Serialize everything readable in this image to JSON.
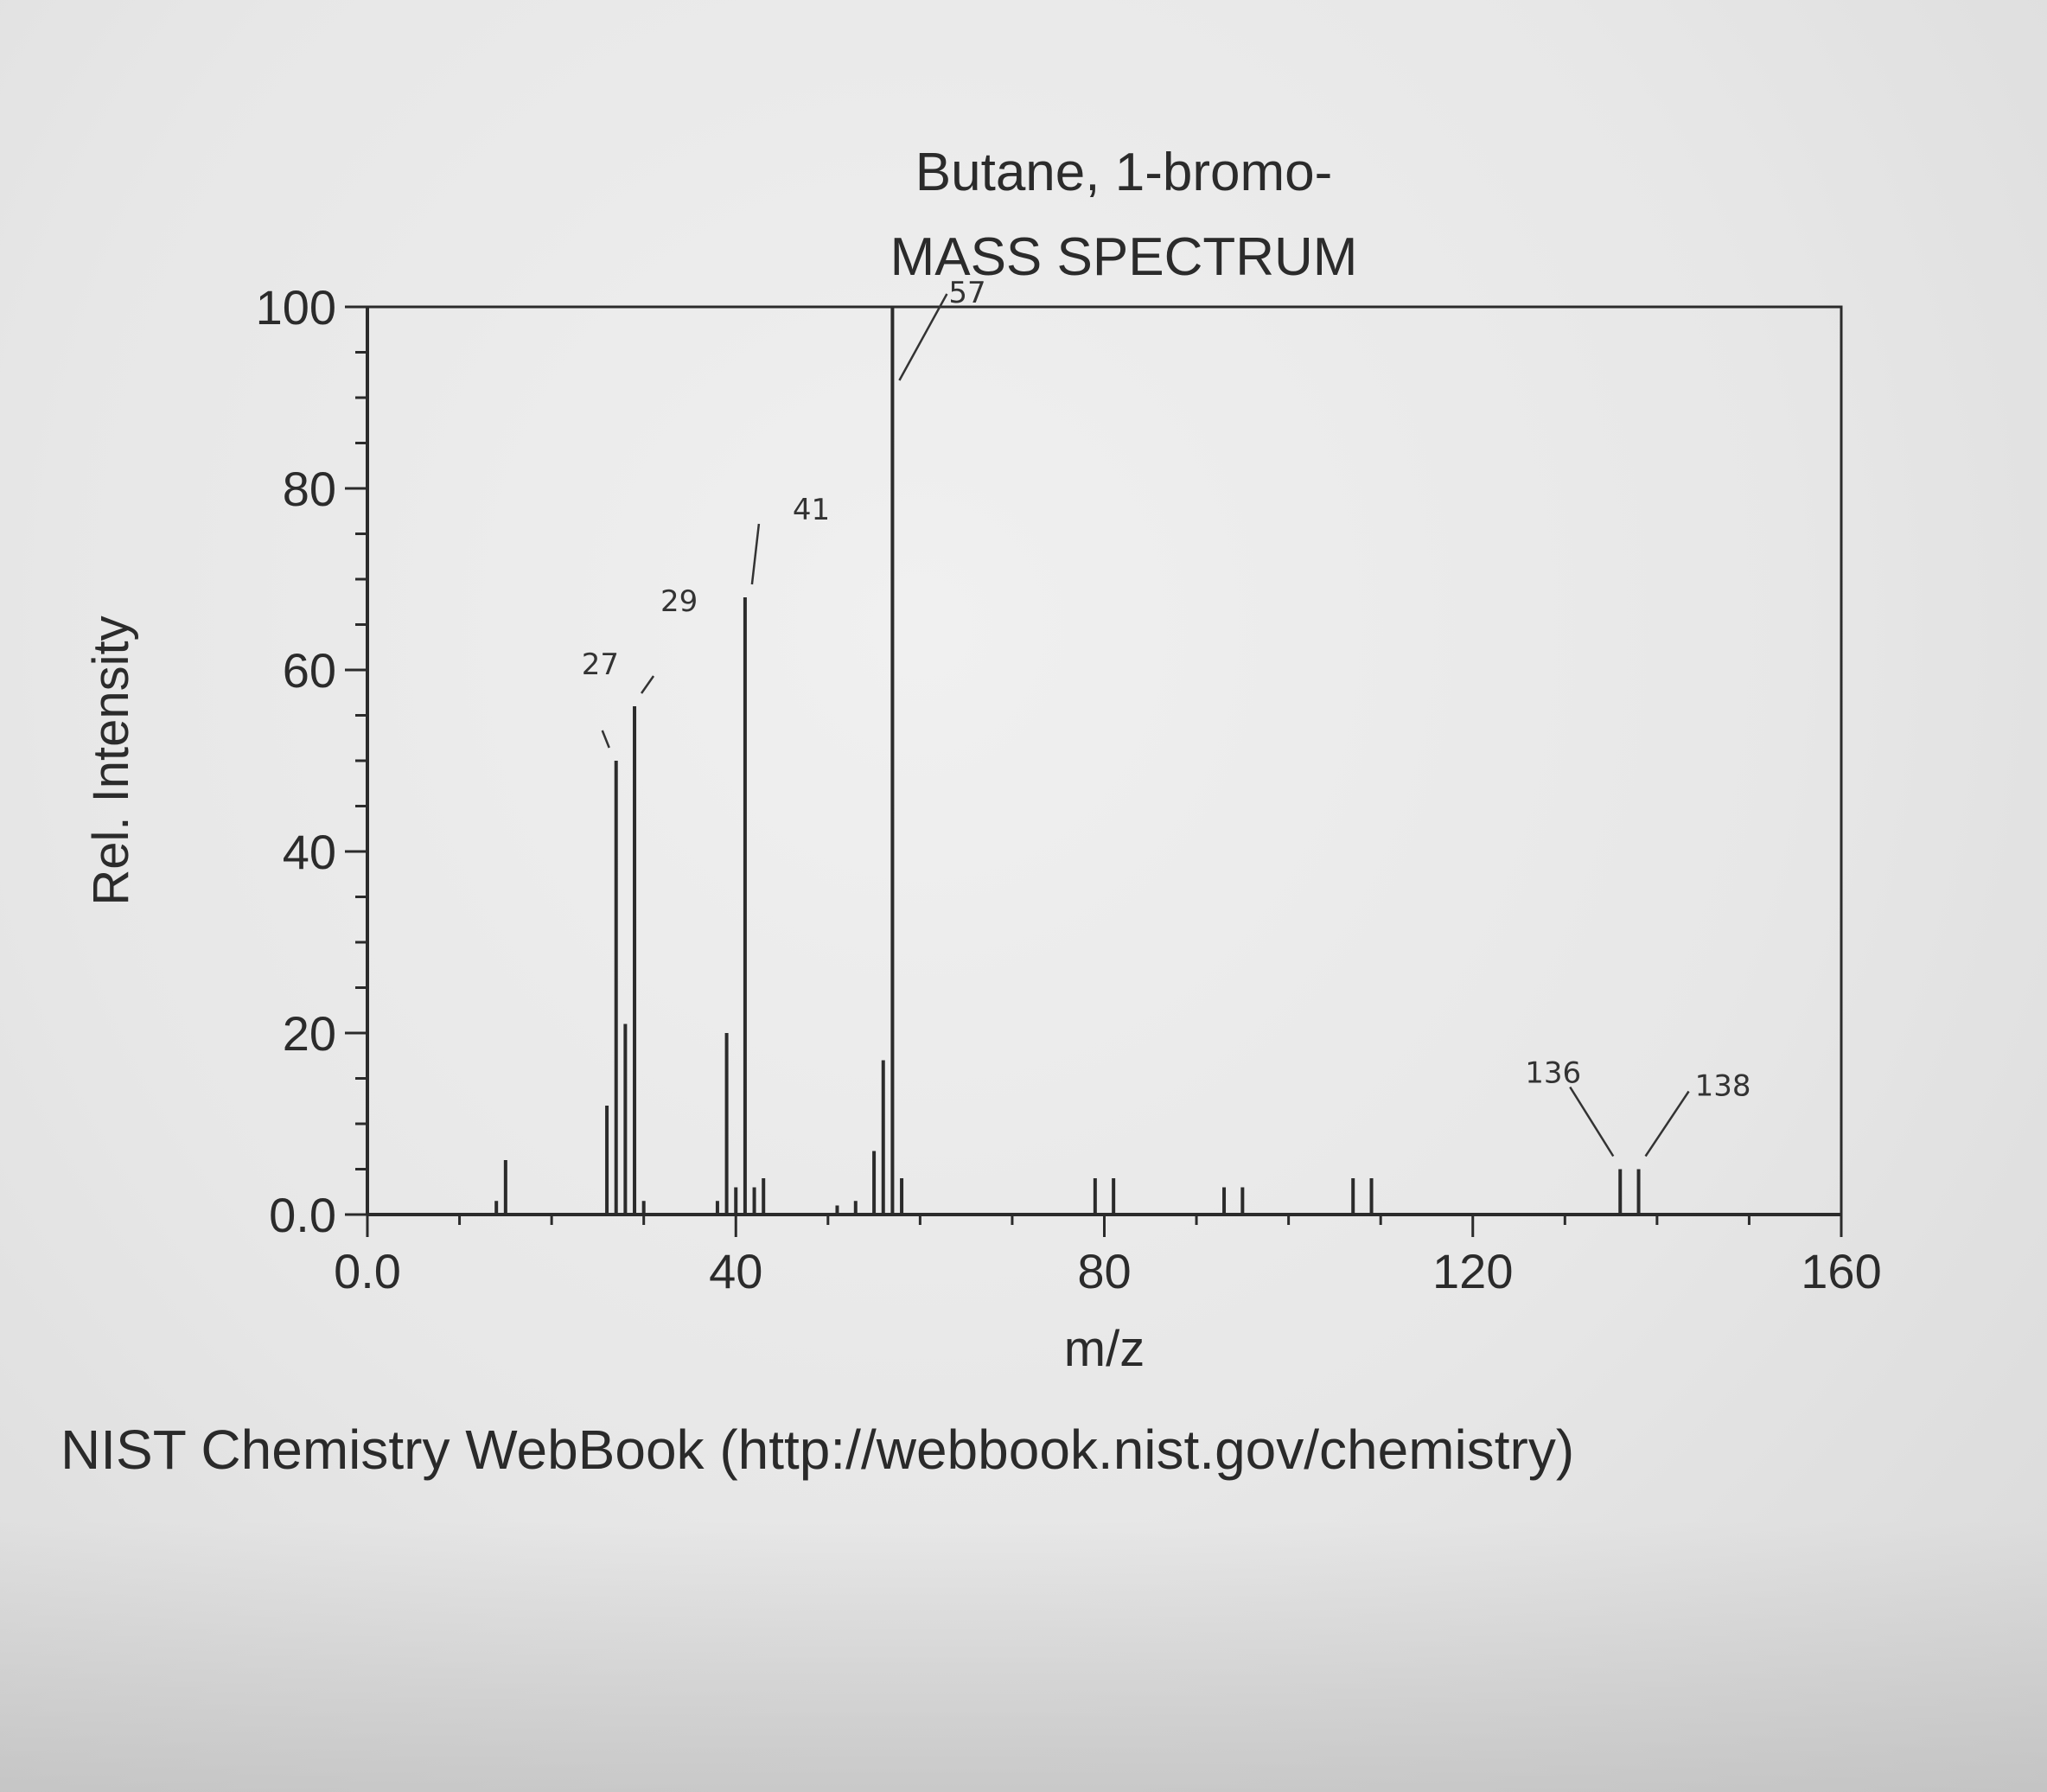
{
  "colors": {
    "ink": "#2b2b2b",
    "paper": "#e9e9e9"
  },
  "source": "NIST Chemistry WebBook (http://webbook.nist.gov/chemistry)",
  "chart_data": {
    "type": "bar",
    "title": "Butane, 1-bromo-",
    "subtitle": "MASS SPECTRUM",
    "xlabel": "m/z",
    "ylabel": "Rel. Intensity",
    "xlim": [
      0,
      160
    ],
    "ylim": [
      0,
      100
    ],
    "grid": false,
    "x_tick_labels": [
      "0.0",
      "40",
      "80",
      "120",
      "160"
    ],
    "x_tick_values": [
      0,
      40,
      80,
      120,
      160
    ],
    "y_tick_labels": [
      "0.0",
      "20",
      "40",
      "60",
      "80",
      "100"
    ],
    "y_tick_values": [
      0,
      20,
      40,
      60,
      80,
      100
    ],
    "peaks": [
      {
        "mz": 14,
        "intensity": 1.5
      },
      {
        "mz": 15,
        "intensity": 6
      },
      {
        "mz": 26,
        "intensity": 12
      },
      {
        "mz": 27,
        "intensity": 50
      },
      {
        "mz": 28,
        "intensity": 21
      },
      {
        "mz": 29,
        "intensity": 56
      },
      {
        "mz": 30,
        "intensity": 1.5
      },
      {
        "mz": 38,
        "intensity": 1.5
      },
      {
        "mz": 39,
        "intensity": 20
      },
      {
        "mz": 40,
        "intensity": 3
      },
      {
        "mz": 41,
        "intensity": 68
      },
      {
        "mz": 42,
        "intensity": 3
      },
      {
        "mz": 43,
        "intensity": 4
      },
      {
        "mz": 51,
        "intensity": 1
      },
      {
        "mz": 53,
        "intensity": 1.5
      },
      {
        "mz": 55,
        "intensity": 7
      },
      {
        "mz": 56,
        "intensity": 17
      },
      {
        "mz": 57,
        "intensity": 100
      },
      {
        "mz": 58,
        "intensity": 4
      },
      {
        "mz": 79,
        "intensity": 4
      },
      {
        "mz": 81,
        "intensity": 4
      },
      {
        "mz": 93,
        "intensity": 3
      },
      {
        "mz": 95,
        "intensity": 3
      },
      {
        "mz": 107,
        "intensity": 4
      },
      {
        "mz": 109,
        "intensity": 4
      },
      {
        "mz": 136,
        "intensity": 5
      },
      {
        "mz": 138,
        "intensity": 5
      }
    ],
    "annotations": [
      {
        "text": "27",
        "mz": 27,
        "intensity": 50
      },
      {
        "text": "29",
        "mz": 29,
        "intensity": 56
      },
      {
        "text": "41",
        "mz": 41,
        "intensity": 68
      },
      {
        "text": "57",
        "mz": 57,
        "intensity": 100
      },
      {
        "text": "136",
        "mz": 136,
        "intensity": 5
      },
      {
        "text": "138",
        "mz": 138,
        "intensity": 5
      }
    ]
  }
}
